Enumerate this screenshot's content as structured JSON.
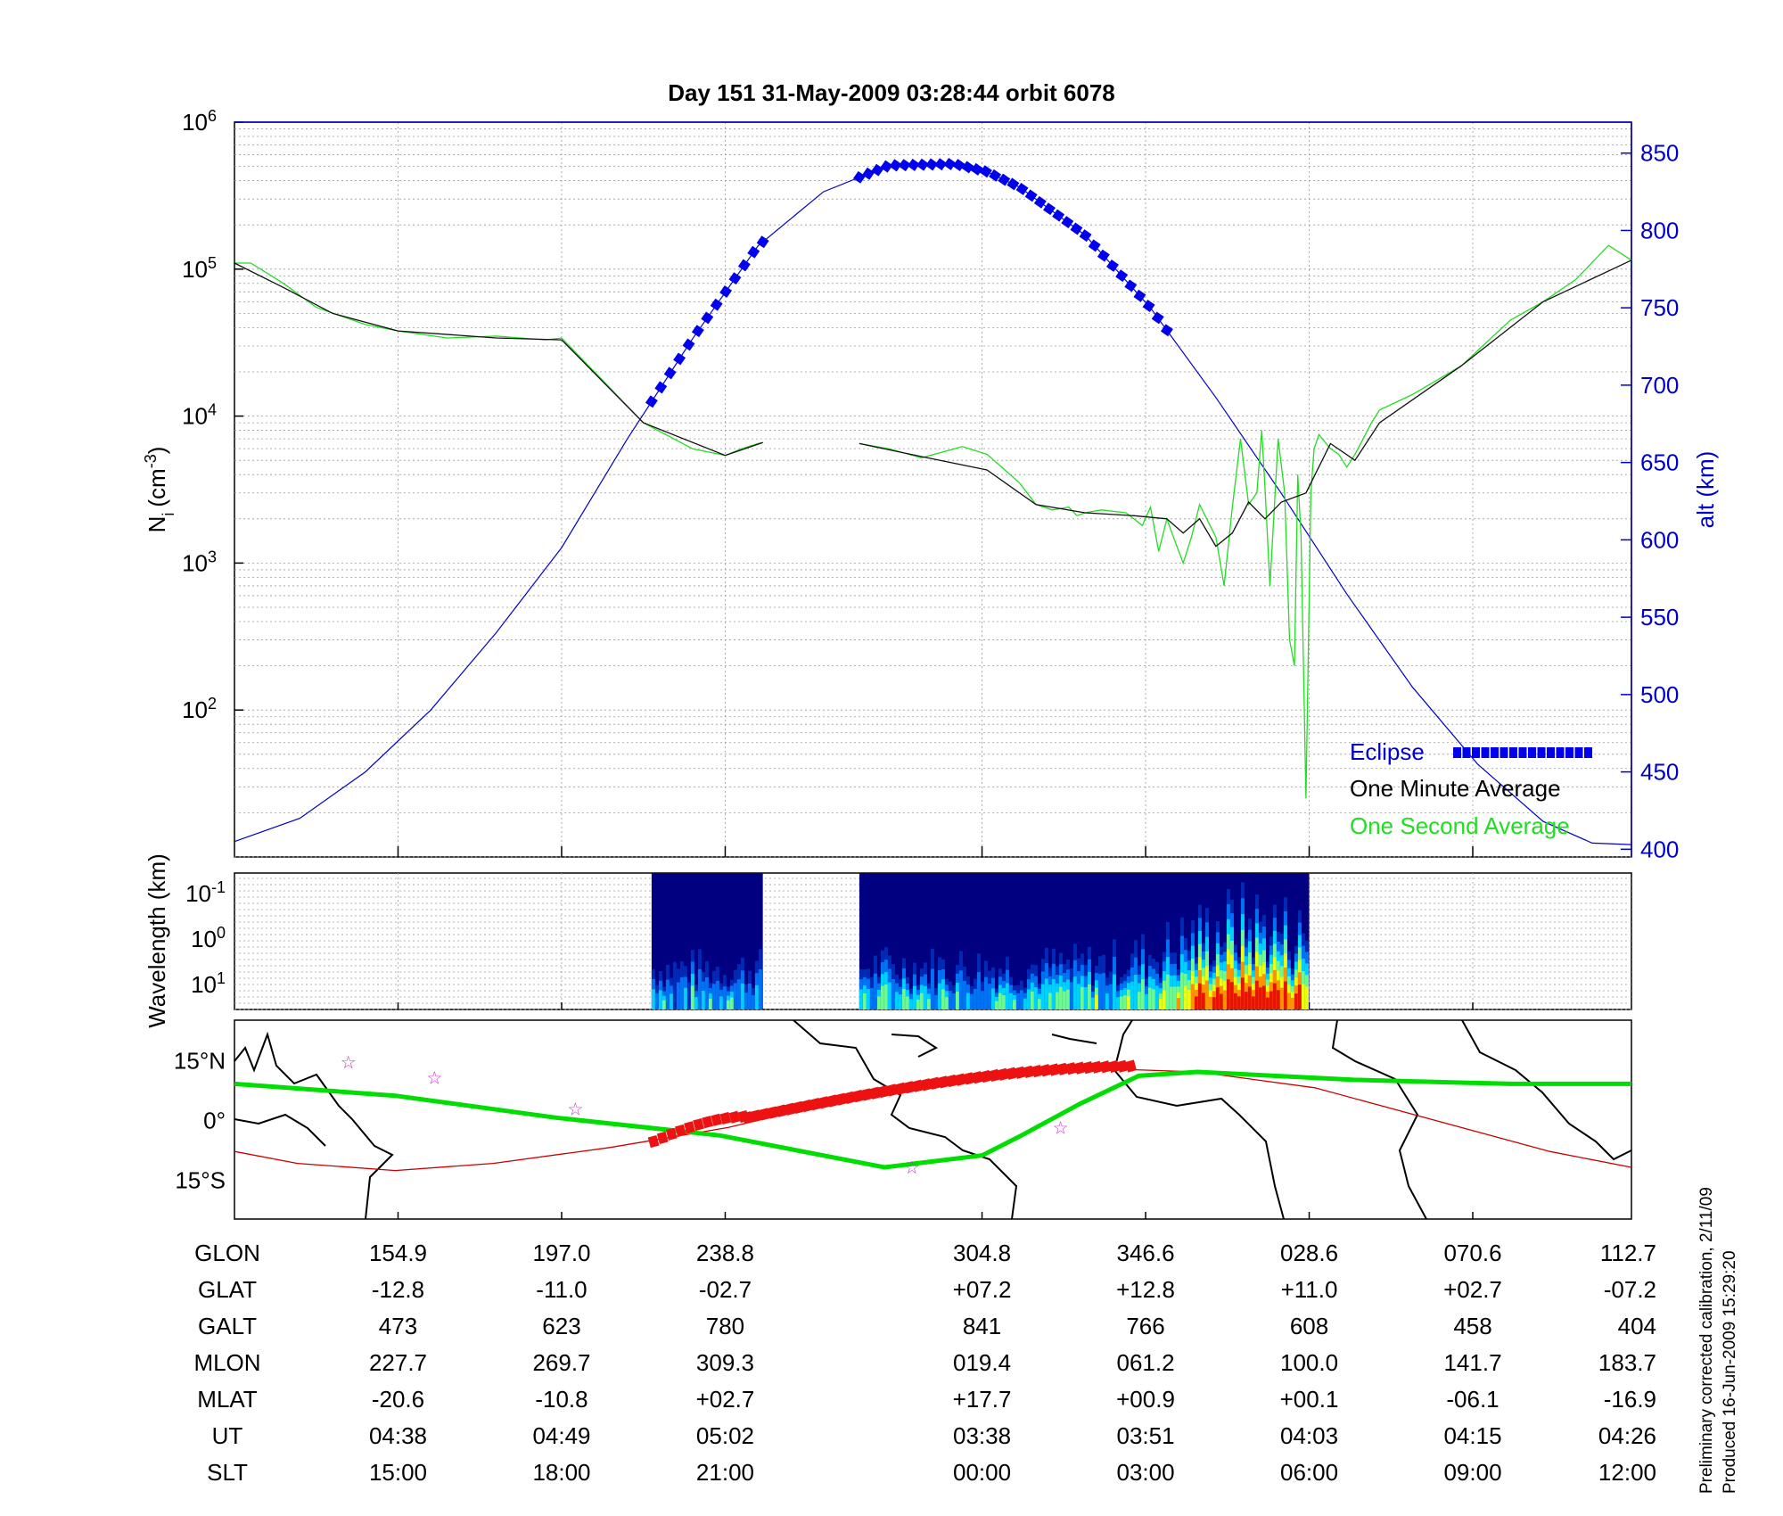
{
  "title": "Day 151  31-May-2009 03:28:44   orbit 6078",
  "side_note": [
    "Preliminary corrected calibration, 2/11/09",
    "Produced 16-Jun-2009 15:29:20"
  ],
  "colors": {
    "one_second": "#22dd22",
    "one_minute": "#111111",
    "altitude": "#0000cc",
    "eclipse": "#0000ee",
    "track_green": "#00dd00",
    "track_red": "#ee1111",
    "magnetic_equator": "#cc0000",
    "star": "#cc33cc"
  },
  "chart_data": [
    {
      "type": "line",
      "panel": "density",
      "title": "Day 151  31-May-2009 03:28:44   orbit 6078",
      "ylabel": "N_i (cm^-3)",
      "ylabel_parts": {
        "base": "N",
        "sub": "i",
        "unit": "(cm",
        "sup": "-3",
        "close": ")"
      },
      "yscale": "log",
      "ylim": [
        10,
        1000000
      ],
      "y_ticks": [
        {
          "base": "10",
          "exp": "2",
          "value": 100
        },
        {
          "base": "10",
          "exp": "3",
          "value": 1000
        },
        {
          "base": "10",
          "exp": "4",
          "value": 10000
        },
        {
          "base": "10",
          "exp": "5",
          "value": 100000
        },
        {
          "base": "10",
          "exp": "6",
          "value": 1000000
        }
      ],
      "y2label": "alt (km)",
      "y2lim": [
        395,
        870
      ],
      "y2_ticks": [
        "400",
        "450",
        "500",
        "550",
        "600",
        "650",
        "700",
        "750",
        "800",
        "850"
      ],
      "x_index_range": [
        0,
        8.54
      ],
      "grid": true,
      "legend": {
        "position": "bottom-right",
        "entries": [
          "Eclipse",
          "One Minute Average",
          "One Second Average"
        ]
      },
      "series": [
        {
          "name": "One Second Average",
          "x": [
            0,
            0.1,
            0.3,
            0.5,
            0.8,
            1.0,
            1.3,
            1.6,
            1.9,
            2.0,
            2.2,
            2.5,
            2.8,
            3.0,
            3.1,
            3.2,
            3.23,
            null,
            3.82,
            4.0,
            4.2,
            4.45,
            4.6,
            4.7,
            4.8,
            4.9,
            5.0,
            5.1,
            5.15,
            5.2,
            5.3,
            5.45,
            5.55,
            5.6,
            5.65,
            5.7,
            5.75,
            5.8,
            5.85,
            5.9,
            6.0,
            6.05,
            6.1,
            6.15,
            6.2,
            6.25,
            6.28,
            6.3,
            6.33,
            6.38,
            6.42,
            6.45,
            6.48,
            6.5,
            6.52,
            6.55,
            6.58,
            6.6,
            6.63,
            6.65,
            6.7,
            6.75,
            6.8,
            6.85,
            6.9,
            6.95,
            7.0,
            7.2,
            7.5,
            7.8,
            8.0,
            8.2,
            8.4,
            8.54
          ],
          "y": [
            110000,
            110000,
            80000,
            55000,
            42000,
            38000,
            34000,
            35000,
            33000,
            34000,
            20000,
            9000,
            6000,
            5400,
            6000,
            6500,
            6600,
            null,
            6500,
            6000,
            5200,
            6200,
            5500,
            4400,
            3500,
            2500,
            2300,
            2400,
            2100,
            2200,
            2300,
            2200,
            1800,
            2400,
            1200,
            2000,
            1400,
            1000,
            1500,
            2500,
            1500,
            700,
            2400,
            7000,
            2500,
            3000,
            8000,
            3200,
            700,
            7000,
            3000,
            300,
            200,
            4000,
            1500,
            25,
            3000,
            6000,
            7500,
            7000,
            6000,
            5500,
            4500,
            5500,
            7000,
            9000,
            11000,
            14000,
            22000,
            45000,
            60000,
            85000,
            145000,
            115000
          ]
        },
        {
          "name": "One Minute Average",
          "x": [
            0,
            0.3,
            0.6,
            1.0,
            1.6,
            2.0,
            2.5,
            3.0,
            3.23,
            null,
            3.82,
            4.2,
            4.6,
            4.9,
            5.2,
            5.5,
            5.7,
            5.8,
            5.9,
            6.0,
            6.1,
            6.2,
            6.3,
            6.4,
            6.55,
            6.7,
            6.85,
            7.0,
            7.5,
            8.0,
            8.54
          ],
          "y": [
            110000,
            75000,
            50000,
            38000,
            34000,
            33000,
            9000,
            5400,
            6600,
            null,
            6500,
            5300,
            4300,
            2500,
            2200,
            2100,
            2000,
            1600,
            2000,
            1300,
            1600,
            2600,
            2000,
            2600,
            3000,
            6500,
            5000,
            9000,
            22000,
            60000,
            115000
          ]
        },
        {
          "name": "Altitude",
          "axis": "y2",
          "x": [
            0,
            0.4,
            0.8,
            1.2,
            1.6,
            2.0,
            2.4,
            2.8,
            3.2,
            3.6,
            4.0,
            4.4,
            4.6,
            4.8,
            5.2,
            5.6,
            6.0,
            6.4,
            6.8,
            7.2,
            7.6,
            8.0,
            8.3,
            8.54
          ],
          "y": [
            405,
            420,
            450,
            490,
            540,
            595,
            665,
            730,
            790,
            825,
            842,
            843,
            838,
            828,
            797,
            750,
            692,
            630,
            565,
            505,
            455,
            418,
            404,
            403
          ]
        }
      ],
      "eclipse_segments": [
        [
          2.55,
          3.23
        ],
        [
          3.82,
          5.7
        ]
      ]
    },
    {
      "type": "heatmap",
      "panel": "spectrogram",
      "ylabel": "Wavelength (km)",
      "yscale": "log",
      "y_ticks": [
        {
          "base": "10",
          "exp": "-1"
        },
        {
          "base": "10",
          "exp": "0"
        },
        {
          "base": "10",
          "exp": "1"
        }
      ],
      "data_intervals": [
        [
          2.55,
          3.23
        ],
        [
          3.82,
          6.57
        ]
      ],
      "colormap": [
        "#000080",
        "#0030c0",
        "#0080ff",
        "#00e0ff",
        "#80ff80",
        "#ffff00",
        "#ff8000",
        "#e00000"
      ],
      "intensity_peak_near": 6.2
    },
    {
      "type": "map",
      "panel": "ground_track",
      "ylabel_ticks": [
        "15°N",
        "0°",
        "15°S"
      ],
      "lat_range": [
        -25,
        25
      ],
      "lon_range": [
        133.9,
        490.9
      ],
      "ground_track": {
        "lon": [
          133.9,
          175,
          216,
          258,
          300,
          325,
          335,
          350,
          365,
          380,
          420,
          460,
          490.9
        ],
        "lat": [
          9,
          6,
          0.5,
          -4,
          -12,
          -9,
          -4,
          4,
          11,
          12,
          10,
          9,
          9
        ]
      },
      "magnetic_equator": {
        "lon": [
          133.9,
          150,
          175,
          200,
          230,
          260,
          290,
          320,
          350,
          380,
          410,
          440,
          470,
          490.9
        ],
        "lat": [
          -8,
          -11,
          -12.8,
          -11,
          -7,
          -2,
          5,
          11,
          13,
          12,
          8,
          0,
          -8,
          -12
        ]
      },
      "track_eclipse_segments": [
        {
          "lon": [
            241,
            264
          ],
          "lat": [
            -5.5,
            0.8
          ]
        },
        {
          "lon": [
            265,
            363
          ],
          "lat": [
            0.5,
            13.5
          ]
        }
      ],
      "stars": [
        {
          "lon": 163,
          "lat": 14.5
        },
        {
          "lon": 185,
          "lat": 10.5
        },
        {
          "lon": 221,
          "lat": 2.7
        },
        {
          "lon": 307,
          "lat": -12
        },
        {
          "lon": 345,
          "lat": -2
        }
      ]
    }
  ],
  "orbit_table": {
    "rows": [
      {
        "label": "GLON",
        "values": [
          "154.9",
          "197.0",
          "238.8",
          "304.8",
          "346.6",
          "028.6",
          "070.6",
          "112.7"
        ]
      },
      {
        "label": "GLAT",
        "values": [
          "-12.8",
          "-11.0",
          "-02.7",
          "+07.2",
          "+12.8",
          "+11.0",
          "+02.7",
          "-07.2"
        ]
      },
      {
        "label": "GALT",
        "values": [
          "473",
          "623",
          "780",
          "841",
          "766",
          "608",
          "458",
          "404"
        ]
      },
      {
        "label": "MLON",
        "values": [
          "227.7",
          "269.7",
          "309.3",
          "019.4",
          "061.2",
          "100.0",
          "141.7",
          "183.7"
        ]
      },
      {
        "label": "MLAT",
        "values": [
          "-20.6",
          "-10.8",
          "+02.7",
          "+17.7",
          "+00.9",
          "+00.1",
          "-06.1",
          "-16.9"
        ]
      },
      {
        "label": "UT",
        "values": [
          "04:38",
          "04:49",
          "05:02",
          "03:38",
          "03:51",
          "04:03",
          "04:15",
          "04:26"
        ]
      },
      {
        "label": "SLT",
        "values": [
          "15:00",
          "18:00",
          "21:00",
          "00:00",
          "03:00",
          "06:00",
          "09:00",
          "12:00"
        ]
      }
    ],
    "column_index": [
      1,
      2,
      3,
      4.57,
      5.57,
      6.57,
      7.57,
      8.57
    ]
  }
}
